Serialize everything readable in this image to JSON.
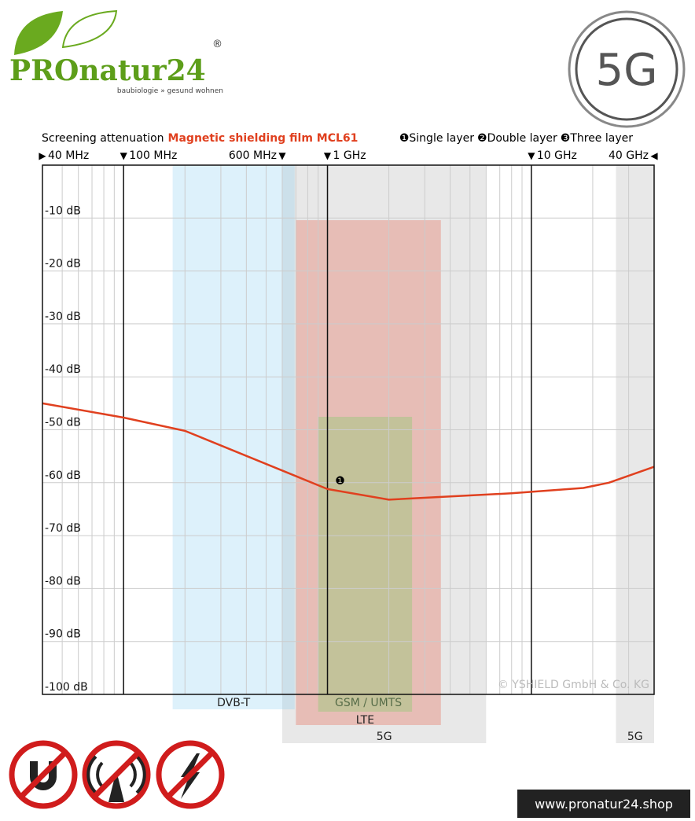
{
  "brand": {
    "name": "PROnatur24",
    "registered": "®",
    "tagline": "baubiologie » gesund wohnen",
    "badge": "5G",
    "url": "www.pronatur24.shop"
  },
  "chart_data": {
    "type": "line",
    "title": "Screening attenuation",
    "subtitle": "Magnetic shielding film MCL61",
    "other_layers": [
      "❷Double layer",
      "❸Three layer"
    ],
    "xscale": "log",
    "xlim": [
      40,
      40000
    ],
    "ylim": [
      -100,
      0
    ],
    "xticks": [
      {
        "value": 40,
        "label": "40 MHz"
      },
      {
        "value": 100,
        "label": "100 MHz"
      },
      {
        "value": 600,
        "label": "600 MHz"
      },
      {
        "value": 1000,
        "label": "1 GHz"
      },
      {
        "value": 10000,
        "label": "10 GHz"
      },
      {
        "value": 40000,
        "label": "40 GHz"
      }
    ],
    "xgrid": [
      50,
      60,
      70,
      80,
      90,
      200,
      300,
      400,
      500,
      700,
      800,
      900,
      2000,
      3000,
      4000,
      5000,
      6000,
      7000,
      8000,
      9000,
      20000,
      30000
    ],
    "yticks": [
      {
        "value": -10,
        "label": "-10 dB"
      },
      {
        "value": -20,
        "label": "-20 dB"
      },
      {
        "value": -30,
        "label": "-30 dB"
      },
      {
        "value": -40,
        "label": "-40 dB"
      },
      {
        "value": -50,
        "label": "-50 dB"
      },
      {
        "value": -60,
        "label": "-60 dB"
      },
      {
        "value": -70,
        "label": "-70 dB"
      },
      {
        "value": -80,
        "label": "-80 dB"
      },
      {
        "value": -90,
        "label": "-90 dB"
      },
      {
        "value": -100,
        "label": "-100 dB"
      }
    ],
    "grid": true,
    "x": [
      40,
      100,
      200,
      1000,
      2000,
      8000,
      18000,
      24000,
      40000
    ],
    "series": [
      {
        "name": "❶Single layer",
        "color": "#e0401f",
        "marker": "❶",
        "values": [
          -45,
          -47.7,
          -50.2,
          -61.2,
          -63.2,
          -62,
          -61,
          -60,
          -57
        ]
      }
    ],
    "bands": [
      {
        "name": "5G",
        "from": 600,
        "to": 6000,
        "color": "rgba(150,150,150,0.22)"
      },
      {
        "name": "DVB-T",
        "from": 174,
        "to": 690,
        "color": "rgba(120,200,240,0.25)"
      },
      {
        "name": "GSM / UMTS",
        "from": 700,
        "to": 3600,
        "color": "rgba(230,110,90,0.35)"
      },
      {
        "name": "LTE",
        "from": 900,
        "to": 2600,
        "color": "rgba(150,200,120,0.45)"
      },
      {
        "name": "5G",
        "from": 26000,
        "to": 40000,
        "color": "rgba(150,150,150,0.22)"
      }
    ],
    "copyright": "© YSHIELD GmbH & Co. KG"
  }
}
